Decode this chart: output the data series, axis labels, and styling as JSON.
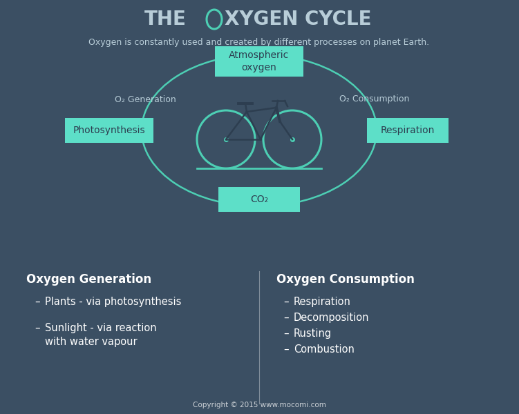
{
  "bg_top": "#3b4f63",
  "bg_bottom": "#2ab5a0",
  "teal_box": "#5ddfc8",
  "teal_circle": "#4dcfb4",
  "light_blue_text": "#b8cdd8",
  "dark_text": "#2d3e50",
  "white": "#ffffff",
  "subtitle": "Oxygen is constantly used and created by different processes on planet Earth.",
  "box_atm": "Atmospheric\noxygen",
  "box_photo": "Photosynthesis",
  "box_resp": "Respiration",
  "box_co2": "CO₂",
  "label_gen": "O₂ Generation",
  "label_con": "O₂ Consumption",
  "left_title": "Oxygen Generation",
  "right_title": "Oxygen Consumption",
  "left_items": [
    "Plants - via photosynthesis",
    "Sunlight - via reaction\nwith water vapour"
  ],
  "right_items": [
    "Respiration",
    "Decomposition",
    "Rusting",
    "Combustion"
  ],
  "copyright": "Copyright © 2015 www.mocomi.com"
}
